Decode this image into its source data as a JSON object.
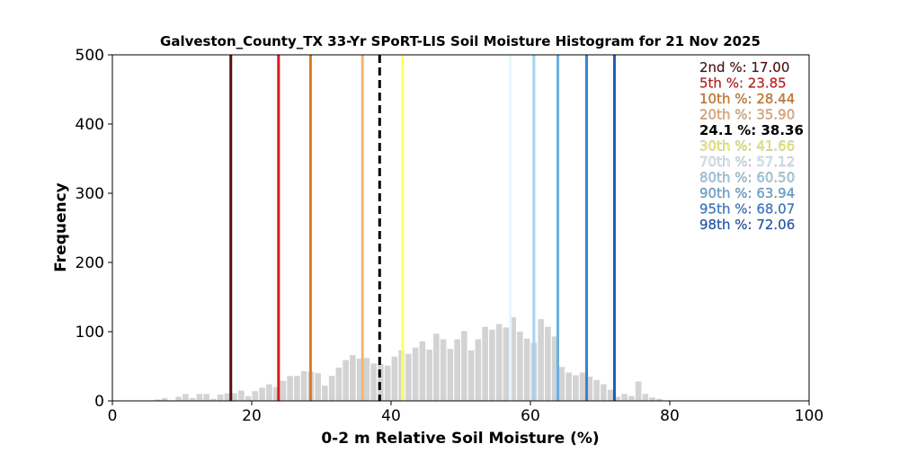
{
  "chart_data": {
    "type": "bar",
    "title": "Galveston_County_TX 33-Yr SPoRT-LIS Soil Moisture Histogram for 21 Nov 2025",
    "xlabel": "0-2 m Relative Soil Moisture (%)",
    "ylabel": "Frequency",
    "xlim": [
      0,
      100
    ],
    "ylim": [
      0,
      500
    ],
    "xticks": [
      "0",
      "20",
      "40",
      "60",
      "80",
      "100"
    ],
    "yticks": [
      "0",
      "100",
      "200",
      "300",
      "400",
      "500"
    ],
    "grid": false,
    "bar_color": "#d3d3d3",
    "bin_width": 0.85,
    "bins": [
      {
        "x": 6.5,
        "y": 2
      },
      {
        "x": 7.5,
        "y": 4
      },
      {
        "x": 9.5,
        "y": 6
      },
      {
        "x": 10.5,
        "y": 10
      },
      {
        "x": 11.5,
        "y": 4
      },
      {
        "x": 12.5,
        "y": 10
      },
      {
        "x": 13.5,
        "y": 10
      },
      {
        "x": 14.5,
        "y": 3
      },
      {
        "x": 15.5,
        "y": 9
      },
      {
        "x": 16.5,
        "y": 11
      },
      {
        "x": 17.5,
        "y": 11
      },
      {
        "x": 18.5,
        "y": 15
      },
      {
        "x": 19.5,
        "y": 7
      },
      {
        "x": 20.5,
        "y": 14
      },
      {
        "x": 21.5,
        "y": 19
      },
      {
        "x": 22.5,
        "y": 24
      },
      {
        "x": 23.5,
        "y": 20
      },
      {
        "x": 24.5,
        "y": 29
      },
      {
        "x": 25.5,
        "y": 36
      },
      {
        "x": 26.5,
        "y": 36
      },
      {
        "x": 27.5,
        "y": 43
      },
      {
        "x": 28.5,
        "y": 42
      },
      {
        "x": 29.5,
        "y": 40
      },
      {
        "x": 30.5,
        "y": 22
      },
      {
        "x": 31.5,
        "y": 36
      },
      {
        "x": 32.5,
        "y": 48
      },
      {
        "x": 33.5,
        "y": 59
      },
      {
        "x": 34.5,
        "y": 66
      },
      {
        "x": 35.5,
        "y": 61
      },
      {
        "x": 36.5,
        "y": 62
      },
      {
        "x": 37.5,
        "y": 54
      },
      {
        "x": 38.5,
        "y": 53
      },
      {
        "x": 39.5,
        "y": 51
      },
      {
        "x": 40.5,
        "y": 64
      },
      {
        "x": 41.5,
        "y": 73
      },
      {
        "x": 42.5,
        "y": 68
      },
      {
        "x": 43.5,
        "y": 77
      },
      {
        "x": 44.5,
        "y": 86
      },
      {
        "x": 45.5,
        "y": 74
      },
      {
        "x": 46.5,
        "y": 97
      },
      {
        "x": 47.5,
        "y": 89
      },
      {
        "x": 48.5,
        "y": 75
      },
      {
        "x": 49.5,
        "y": 89
      },
      {
        "x": 50.5,
        "y": 101
      },
      {
        "x": 51.5,
        "y": 73
      },
      {
        "x": 52.5,
        "y": 89
      },
      {
        "x": 53.5,
        "y": 107
      },
      {
        "x": 54.5,
        "y": 103
      },
      {
        "x": 55.5,
        "y": 111
      },
      {
        "x": 56.5,
        "y": 106
      },
      {
        "x": 57.5,
        "y": 121
      },
      {
        "x": 58.5,
        "y": 100
      },
      {
        "x": 59.5,
        "y": 90
      },
      {
        "x": 60.5,
        "y": 84
      },
      {
        "x": 61.5,
        "y": 118
      },
      {
        "x": 62.5,
        "y": 107
      },
      {
        "x": 63.5,
        "y": 93
      },
      {
        "x": 64.5,
        "y": 49
      },
      {
        "x": 65.5,
        "y": 41
      },
      {
        "x": 66.5,
        "y": 37
      },
      {
        "x": 67.5,
        "y": 41
      },
      {
        "x": 68.5,
        "y": 35
      },
      {
        "x": 69.5,
        "y": 30
      },
      {
        "x": 70.5,
        "y": 24
      },
      {
        "x": 71.5,
        "y": 16
      },
      {
        "x": 72.5,
        "y": 6
      },
      {
        "x": 73.5,
        "y": 10
      },
      {
        "x": 74.5,
        "y": 7
      },
      {
        "x": 75.5,
        "y": 28
      },
      {
        "x": 76.5,
        "y": 10
      },
      {
        "x": 77.5,
        "y": 5
      },
      {
        "x": 78.5,
        "y": 3
      }
    ],
    "percentile_lines": [
      {
        "label": "2nd %: 17.00",
        "value": 17.0,
        "color": "#5a0f0f",
        "dashed": false
      },
      {
        "label": "5th %: 23.85",
        "value": 23.85,
        "color": "#d7191c",
        "dashed": false
      },
      {
        "label": "10th %: 28.44",
        "value": 28.44,
        "color": "#e07b20",
        "dashed": false
      },
      {
        "label": "20th %: 35.90",
        "value": 35.9,
        "color": "#f4b27a",
        "dashed": false
      },
      {
        "label": "24.1 %: 38.36",
        "value": 38.36,
        "color": "#000000",
        "dashed": true
      },
      {
        "label": "30th %: 41.66",
        "value": 41.66,
        "color": "#ffff66",
        "dashed": false
      },
      {
        "label": "70th %: 57.12",
        "value": 57.12,
        "color": "#e0f8ff",
        "dashed": false
      },
      {
        "label": "80th %: 60.50",
        "value": 60.5,
        "color": "#9fd3f0",
        "dashed": false
      },
      {
        "label": "90th %: 63.94",
        "value": 63.94,
        "color": "#6aaee3",
        "dashed": false
      },
      {
        "label": "95th %: 68.07",
        "value": 68.07,
        "color": "#3a7fd6",
        "dashed": false
      },
      {
        "label": "98th %: 72.06",
        "value": 72.06,
        "color": "#1d5cbf",
        "dashed": false
      }
    ],
    "legend_placement": "top-right"
  }
}
